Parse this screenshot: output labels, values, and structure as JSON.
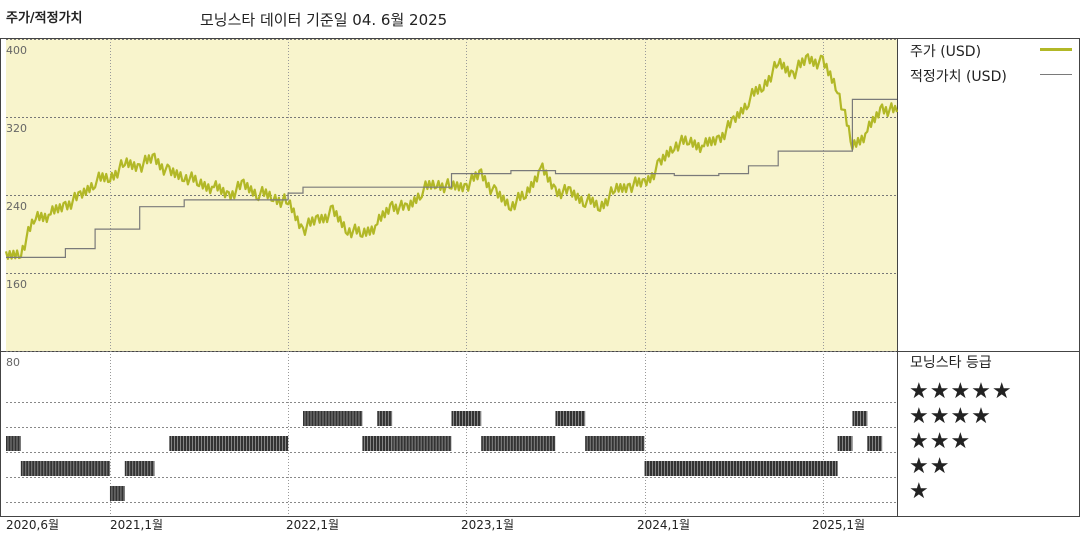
{
  "header": {
    "left_title": "주가/적정가치",
    "subtitle": "모닝스타 데이터 기준일 04. 6월 2025"
  },
  "legend": {
    "price": "주가 (USD)",
    "fair_value": "적정가치 (USD)",
    "rating_title": "모닝스타 등급"
  },
  "colors": {
    "price": "#b2b827",
    "fair_value": "#7a7a7a",
    "panel_bg": "#f8f4cc",
    "rating_bar": "#333333"
  },
  "chart_data": {
    "type": "line",
    "x_labels": [
      "2020,6월",
      "2021,1월",
      "2022,1월",
      "2023,1월",
      "2024,1월",
      "2025,1월"
    ],
    "y_ticks": [
      400,
      320,
      240,
      160,
      80
    ],
    "ylim": [
      80,
      400
    ],
    "series": [
      {
        "name": "주가 (USD)",
        "points": [
          [
            "2020-06",
            175
          ],
          [
            "2020-07",
            182
          ],
          [
            "2020-08",
            218
          ],
          [
            "2020-09",
            220
          ],
          [
            "2020-10",
            230
          ],
          [
            "2020-11",
            238
          ],
          [
            "2020-12",
            255
          ],
          [
            "2021-01",
            258
          ],
          [
            "2021-02",
            272
          ],
          [
            "2021-03",
            270
          ],
          [
            "2021-04",
            278
          ],
          [
            "2021-05",
            262
          ],
          [
            "2021-06",
            260
          ],
          [
            "2021-07",
            252
          ],
          [
            "2021-08",
            248
          ],
          [
            "2021-09",
            240
          ],
          [
            "2021-10",
            250
          ],
          [
            "2021-11",
            242
          ],
          [
            "2021-12",
            238
          ],
          [
            "2022-01",
            232
          ],
          [
            "2022-02",
            205
          ],
          [
            "2022-03",
            215
          ],
          [
            "2022-04",
            222
          ],
          [
            "2022-05",
            205
          ],
          [
            "2022-06",
            200
          ],
          [
            "2022-07",
            210
          ],
          [
            "2022-08",
            230
          ],
          [
            "2022-09",
            225
          ],
          [
            "2022-10",
            245
          ],
          [
            "2022-11",
            252
          ],
          [
            "2022-12",
            248
          ],
          [
            "2023-01",
            250
          ],
          [
            "2023-02",
            262
          ],
          [
            "2023-03",
            240
          ],
          [
            "2023-04",
            230
          ],
          [
            "2023-05",
            240
          ],
          [
            "2023-06",
            268
          ],
          [
            "2023-07",
            245
          ],
          [
            "2023-08",
            242
          ],
          [
            "2023-09",
            235
          ],
          [
            "2023-10",
            228
          ],
          [
            "2023-11",
            245
          ],
          [
            "2023-12",
            250
          ],
          [
            "2024-01",
            252
          ],
          [
            "2024-02",
            270
          ],
          [
            "2024-03",
            292
          ],
          [
            "2024-04",
            295
          ],
          [
            "2024-05",
            290
          ],
          [
            "2024-06",
            298
          ],
          [
            "2024-07",
            315
          ],
          [
            "2024-08",
            338
          ],
          [
            "2024-09",
            352
          ],
          [
            "2024-10",
            375
          ],
          [
            "2024-11",
            365
          ],
          [
            "2024-12",
            380
          ],
          [
            "2025-01",
            375
          ],
          [
            "2025-02",
            350
          ],
          [
            "2025-03",
            290
          ],
          [
            "2025-04",
            305
          ],
          [
            "2025-05",
            330
          ],
          [
            "2025-06",
            325
          ]
        ]
      },
      {
        "name": "적정가치 (USD)",
        "points": [
          [
            "2020-06",
            176
          ],
          [
            "2020-10",
            185
          ],
          [
            "2020-12",
            205
          ],
          [
            "2021-03",
            228
          ],
          [
            "2021-06",
            235
          ],
          [
            "2022-01",
            242
          ],
          [
            "2022-02",
            248
          ],
          [
            "2022-06",
            248
          ],
          [
            "2022-09",
            248
          ],
          [
            "2022-12",
            262
          ],
          [
            "2023-02",
            262
          ],
          [
            "2023-04",
            265
          ],
          [
            "2023-07",
            262
          ],
          [
            "2023-10",
            262
          ],
          [
            "2024-01",
            262
          ],
          [
            "2024-03",
            260
          ],
          [
            "2024-06",
            262
          ],
          [
            "2024-08",
            270
          ],
          [
            "2024-10",
            285
          ],
          [
            "2025-02",
            285
          ],
          [
            "2025-03",
            338
          ],
          [
            "2025-06",
            338
          ]
        ]
      }
    ],
    "ratings": {
      "labels": [
        "★★★★★",
        "★★★★",
        "★★★",
        "★★",
        "★"
      ],
      "segments": [
        {
          "start": "2020-06",
          "end": "2020-07",
          "stars": 3
        },
        {
          "start": "2020-07",
          "end": "2021-01",
          "stars": 2
        },
        {
          "start": "2021-01",
          "end": "2021-02",
          "stars": 1
        },
        {
          "start": "2021-02",
          "end": "2021-04",
          "stars": 2
        },
        {
          "start": "2021-05",
          "end": "2022-01",
          "stars": 3
        },
        {
          "start": "2022-02",
          "end": "2022-06",
          "stars": 4
        },
        {
          "start": "2022-06",
          "end": "2022-08",
          "stars": 3
        },
        {
          "start": "2022-07",
          "end": "2022-08",
          "stars": 4
        },
        {
          "start": "2022-08",
          "end": "2022-12",
          "stars": 3
        },
        {
          "start": "2022-12",
          "end": "2023-02",
          "stars": 4
        },
        {
          "start": "2023-02",
          "end": "2023-07",
          "stars": 3
        },
        {
          "start": "2023-07",
          "end": "2023-09",
          "stars": 4
        },
        {
          "start": "2023-09",
          "end": "2024-01",
          "stars": 3
        },
        {
          "start": "2024-01",
          "end": "2025-02",
          "stars": 2
        },
        {
          "start": "2025-02",
          "end": "2025-03",
          "stars": 3
        },
        {
          "start": "2025-03",
          "end": "2025-04",
          "stars": 4
        },
        {
          "start": "2025-04",
          "end": "2025-05",
          "stars": 3
        }
      ]
    }
  }
}
